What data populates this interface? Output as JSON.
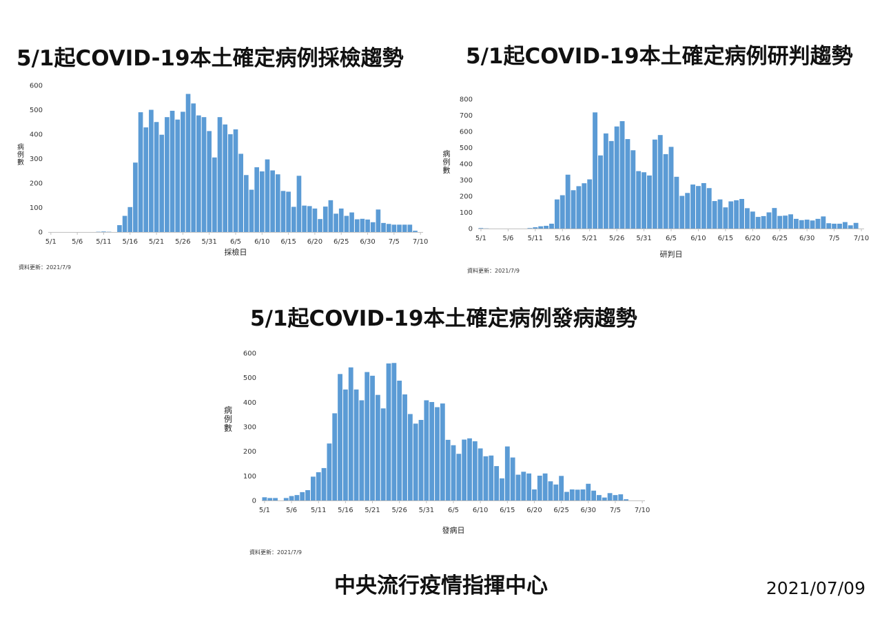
{
  "chart_data": [
    {
      "type": "bar",
      "title": "5/1起COVID-19本土確定病例採檢趨勢",
      "xlabel": "採檢日",
      "ylabel": "病例數",
      "ylim": [
        0,
        600
      ],
      "yticks": [
        0,
        100,
        200,
        300,
        400,
        500,
        600
      ],
      "xticks": [
        "5/1",
        "5/6",
        "5/11",
        "5/16",
        "5/21",
        "5/26",
        "5/31",
        "6/5",
        "6/10",
        "6/15",
        "6/20",
        "6/25",
        "6/30",
        "7/5",
        "7/10"
      ],
      "start_date": "5/1",
      "values": [
        0,
        0,
        0,
        0,
        0,
        0,
        0,
        0,
        0,
        1,
        2,
        1,
        0,
        28,
        66,
        102,
        284,
        490,
        428,
        500,
        450,
        398,
        470,
        496,
        460,
        492,
        565,
        526,
        477,
        470,
        413,
        305,
        470,
        440,
        400,
        420,
        320,
        233,
        173,
        265,
        248,
        297,
        252,
        236,
        168,
        165,
        103,
        230,
        108,
        106,
        96,
        53,
        104,
        130,
        75,
        96,
        66,
        80,
        52,
        54,
        51,
        40,
        92,
        37,
        33,
        30,
        30,
        30,
        30,
        5,
        0
      ],
      "source_note": "資料更新：2021/7/9",
      "grid": false
    },
    {
      "type": "bar",
      "title": "5/1起COVID-19本土確定病例研判趨勢",
      "xlabel": "研判日",
      "ylabel": "病例數",
      "ylim": [
        0,
        800
      ],
      "yticks": [
        0,
        100,
        200,
        300,
        400,
        500,
        600,
        700,
        800
      ],
      "xticks": [
        "5/1",
        "5/6",
        "5/11",
        "5/16",
        "5/21",
        "5/26",
        "5/31",
        "6/5",
        "6/10",
        "6/15",
        "6/20",
        "6/25",
        "6/30",
        "7/5",
        "7/10"
      ],
      "start_date": "5/1",
      "values": [
        3,
        1,
        0,
        0,
        0,
        0,
        0,
        0,
        0,
        3,
        8,
        14,
        17,
        30,
        180,
        206,
        333,
        237,
        262,
        280,
        304,
        718,
        452,
        588,
        541,
        631,
        664,
        553,
        484,
        355,
        348,
        328,
        550,
        578,
        460,
        505,
        320,
        202,
        220,
        272,
        263,
        281,
        250,
        170,
        180,
        131,
        168,
        175,
        183,
        126,
        105,
        72,
        77,
        100,
        127,
        78,
        80,
        88,
        60,
        52,
        55,
        50,
        60,
        75,
        33,
        30,
        30,
        40,
        20,
        35,
        0
      ],
      "source_note": "資料更新：2021/7/9",
      "grid": false
    },
    {
      "type": "bar",
      "title": "5/1起COVID-19本土確定病例發病趨勢",
      "xlabel": "發病日",
      "ylabel": "病例數",
      "ylim": [
        0,
        600
      ],
      "yticks": [
        0,
        100,
        200,
        300,
        400,
        500,
        600
      ],
      "xticks": [
        "5/1",
        "5/6",
        "5/11",
        "5/16",
        "5/21",
        "5/26",
        "5/31",
        "6/5",
        "6/10",
        "6/15",
        "6/20",
        "6/25",
        "6/30",
        "7/5",
        "7/10"
      ],
      "start_date": "5/1",
      "values": [
        13,
        10,
        10,
        0,
        10,
        18,
        22,
        34,
        42,
        97,
        115,
        132,
        232,
        355,
        515,
        452,
        542,
        452,
        408,
        523,
        508,
        430,
        375,
        558,
        560,
        488,
        432,
        352,
        313,
        328,
        408,
        401,
        380,
        395,
        247,
        225,
        190,
        248,
        253,
        241,
        212,
        180,
        183,
        140,
        90,
        220,
        175,
        105,
        117,
        110,
        45,
        101,
        110,
        78,
        65,
        100,
        35,
        45,
        44,
        45,
        68,
        40,
        22,
        12,
        30,
        22,
        25,
        5,
        0,
        0,
        0
      ],
      "source_note": "資料更新：2021/7/9",
      "grid": false
    }
  ],
  "footer": {
    "organization": "中央流行疫情指揮中心",
    "date": "2021/07/09"
  },
  "colors": {
    "bar": "#5B9BD5",
    "axis": "#bfbfbf",
    "text": "#111111"
  }
}
